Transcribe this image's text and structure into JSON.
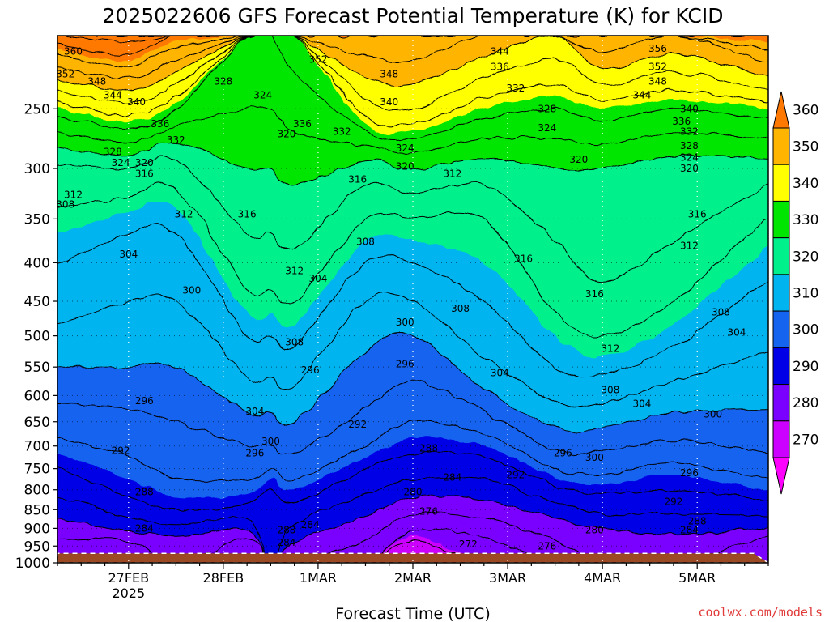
{
  "chart_data": {
    "type": "heatmap",
    "title": "2025022606 GFS Forecast Potential Temperature (K) for KCID",
    "xlabel": "Forecast Time (UTC)",
    "ylabel": "",
    "credit": "coolwx.com/models",
    "y_axis": {
      "units": "hPa",
      "scale": "log",
      "reversed": true,
      "range": [
        200,
        1000
      ],
      "ticks": [
        250,
        300,
        350,
        400,
        450,
        500,
        550,
        600,
        650,
        700,
        750,
        800,
        850,
        900,
        950,
        1000
      ]
    },
    "x_axis": {
      "range": [
        "2025-02-26 06:00",
        "2025-03-05 18:00"
      ],
      "ticks": [
        {
          "t": "2025-02-27 00:00",
          "label": "27FEB",
          "sublabel": "2025"
        },
        {
          "t": "2025-02-28 00:00",
          "label": "28FEB",
          "sublabel": ""
        },
        {
          "t": "2025-03-01 00:00",
          "label": "1MAR",
          "sublabel": ""
        },
        {
          "t": "2025-03-02 00:00",
          "label": "2MAR",
          "sublabel": ""
        },
        {
          "t": "2025-03-03 00:00",
          "label": "3MAR",
          "sublabel": ""
        },
        {
          "t": "2025-03-04 00:00",
          "label": "4MAR",
          "sublabel": ""
        },
        {
          "t": "2025-03-05 00:00",
          "label": "5MAR",
          "sublabel": ""
        }
      ]
    },
    "grid": true,
    "legend": "right",
    "colorbar": {
      "levels": [
        260,
        270,
        280,
        290,
        300,
        310,
        320,
        330,
        340,
        350,
        360,
        370
      ],
      "labels": [
        270,
        280,
        290,
        300,
        310,
        320,
        330,
        340,
        350,
        360
      ],
      "colors": [
        "#ff00ff",
        "#cc00ff",
        "#7a00ff",
        "#0000e6",
        "#1464f0",
        "#00b4f0",
        "#00f08c",
        "#00e600",
        "#ffff00",
        "#ffb400",
        "#ff7800"
      ]
    },
    "isopleths": {
      "units": "K",
      "interval": 4,
      "upper_levels_hPa": [
        950,
        900,
        850,
        800,
        750,
        700,
        650,
        600,
        550,
        500,
        450,
        400,
        350,
        300,
        250,
        200
      ],
      "times": [
        "2025-02-26 06:00",
        "2025-02-27 00:00",
        "2025-02-27 12:00",
        "2025-02-28 06:00",
        "2025-02-28 12:00",
        "2025-02-28 18:00",
        "2025-03-01 12:00",
        "2025-03-02 00:00",
        "2025-03-02 18:00",
        "2025-03-03 12:00",
        "2025-03-04 00:00",
        "2025-03-04 18:00",
        "2025-03-05 18:00"
      ],
      "theta_K": [
        [
          275,
          278,
          282,
          285,
          288,
          291,
          294,
          297,
          300,
          303,
          306,
          308,
          311,
          315,
          330,
          355
        ],
        [
          274,
          281,
          286,
          289,
          291,
          293,
          295,
          297,
          300,
          302,
          304,
          306,
          309,
          316,
          334,
          358
        ],
        [
          276,
          283,
          288,
          291,
          293,
          295,
          296,
          298,
          300,
          302,
          304,
          306,
          309,
          314,
          328,
          352
        ],
        [
          272,
          281,
          287,
          291,
          293,
          296,
          299,
          302,
          305,
          308,
          311,
          314,
          317,
          320,
          324,
          328
        ],
        [
          284,
          286,
          287,
          288,
          292,
          296,
          299,
          302,
          305,
          308,
          311,
          314,
          317,
          320,
          324,
          328
        ],
        [
          279,
          283,
          287,
          290,
          294,
          297,
          300,
          303,
          306,
          309,
          312,
          315,
          318,
          321,
          326,
          330
        ],
        [
          275,
          278,
          281,
          285,
          288,
          292,
          295,
          297,
          299,
          301,
          304,
          308,
          312,
          318,
          334,
          348
        ],
        [
          266,
          273,
          277,
          282,
          286,
          289,
          292,
          295,
          297,
          300,
          304,
          308,
          312,
          320,
          336,
          348
        ],
        [
          270,
          274,
          278,
          282,
          286,
          290,
          294,
          299,
          303,
          306,
          308,
          310,
          312,
          318,
          330,
          344
        ],
        [
          275,
          278,
          282,
          287,
          292,
          297,
          301,
          305,
          308,
          310,
          313,
          315,
          317,
          320,
          328,
          340
        ],
        [
          276,
          280,
          285,
          289,
          293,
          297,
          301,
          305,
          309,
          312,
          315,
          317,
          318,
          320,
          330,
          348
        ],
        [
          278,
          281,
          285,
          288,
          291,
          295,
          299,
          302,
          306,
          309,
          312,
          315,
          317,
          318,
          328,
          344
        ],
        [
          272,
          280,
          286,
          290,
          294,
          297,
          299,
          301,
          303,
          305,
          307,
          309,
          312,
          318,
          330,
          352
        ]
      ],
      "contour_labels": [
        {
          "v": "360",
          "t": "2025-02-26 10:00",
          "p": 210
        },
        {
          "v": "352",
          "t": "2025-02-26 08:00",
          "p": 225
        },
        {
          "v": "348",
          "t": "2025-02-26 16:00",
          "p": 230
        },
        {
          "v": "344",
          "t": "2025-02-26 20:00",
          "p": 240
        },
        {
          "v": "340",
          "t": "2025-02-27 02:00",
          "p": 245
        },
        {
          "v": "336",
          "t": "2025-02-27 08:00",
          "p": 262
        },
        {
          "v": "332",
          "t": "2025-02-27 12:00",
          "p": 275
        },
        {
          "v": "328",
          "t": "2025-02-26 20:00",
          "p": 285
        },
        {
          "v": "324",
          "t": "2025-02-26 22:00",
          "p": 295
        },
        {
          "v": "320",
          "t": "2025-02-27 04:00",
          "p": 295
        },
        {
          "v": "316",
          "t": "2025-02-27 04:00",
          "p": 305
        },
        {
          "v": "312",
          "t": "2025-02-26 10:00",
          "p": 325
        },
        {
          "v": "308",
          "t": "2025-02-26 08:00",
          "p": 335
        },
        {
          "v": "304",
          "t": "2025-02-27 00:00",
          "p": 390
        },
        {
          "v": "300",
          "t": "2025-02-27 16:00",
          "p": 435
        },
        {
          "v": "296",
          "t": "2025-02-27 04:00",
          "p": 610
        },
        {
          "v": "292",
          "t": "2025-02-26 22:00",
          "p": 710
        },
        {
          "v": "288",
          "t": "2025-02-27 04:00",
          "p": 805
        },
        {
          "v": "284",
          "t": "2025-02-27 04:00",
          "p": 900
        },
        {
          "v": "328",
          "t": "2025-02-28 00:00",
          "p": 230
        },
        {
          "v": "324",
          "t": "2025-02-28 10:00",
          "p": 240
        },
        {
          "v": "320",
          "t": "2025-02-28 16:00",
          "p": 270
        },
        {
          "v": "316",
          "t": "2025-02-28 06:00",
          "p": 345
        },
        {
          "v": "312",
          "t": "2025-02-27 14:00",
          "p": 345
        },
        {
          "v": "312",
          "t": "2025-02-28 18:00",
          "p": 410
        },
        {
          "v": "308",
          "t": "2025-02-28 18:00",
          "p": 510
        },
        {
          "v": "304",
          "t": "2025-02-28 08:00",
          "p": 630
        },
        {
          "v": "300",
          "t": "2025-02-28 12:00",
          "p": 690
        },
        {
          "v": "296",
          "t": "2025-02-28 08:00",
          "p": 715
        },
        {
          "v": "288",
          "t": "2025-02-28 16:00",
          "p": 905
        },
        {
          "v": "284",
          "t": "2025-02-28 16:00",
          "p": 940
        },
        {
          "v": "296",
          "t": "2025-02-28 22:00",
          "p": 555
        },
        {
          "v": "284",
          "t": "2025-02-28 22:00",
          "p": 890
        },
        {
          "v": "336",
          "t": "2025-02-28 20:00",
          "p": 262
        },
        {
          "v": "352",
          "t": "2025-03-01 00:00",
          "p": 215
        },
        {
          "v": "348",
          "t": "2025-03-01 18:00",
          "p": 225
        },
        {
          "v": "340",
          "t": "2025-03-01 18:00",
          "p": 245
        },
        {
          "v": "332",
          "t": "2025-03-01 06:00",
          "p": 268
        },
        {
          "v": "304",
          "t": "2025-03-01 00:00",
          "p": 420
        },
        {
          "v": "308",
          "t": "2025-03-01 12:00",
          "p": 375
        },
        {
          "v": "300",
          "t": "2025-03-01 22:00",
          "p": 480
        },
        {
          "v": "296",
          "t": "2025-03-01 22:00",
          "p": 545
        },
        {
          "v": "292",
          "t": "2025-03-01 10:00",
          "p": 655
        },
        {
          "v": "288",
          "t": "2025-03-02 04:00",
          "p": 705
        },
        {
          "v": "284",
          "t": "2025-03-02 10:00",
          "p": 770
        },
        {
          "v": "280",
          "t": "2025-03-02 00:00",
          "p": 805
        },
        {
          "v": "276",
          "t": "2025-03-02 04:00",
          "p": 855
        },
        {
          "v": "272",
          "t": "2025-03-02 14:00",
          "p": 945
        },
        {
          "v": "324",
          "t": "2025-03-01 22:00",
          "p": 282
        },
        {
          "v": "320",
          "t": "2025-03-01 22:00",
          "p": 298
        },
        {
          "v": "316",
          "t": "2025-03-01 10:00",
          "p": 310
        },
        {
          "v": "312",
          "t": "2025-03-02 10:00",
          "p": 305
        },
        {
          "v": "308",
          "t": "2025-03-02 12:00",
          "p": 460
        },
        {
          "v": "304",
          "t": "2025-03-02 22:00",
          "p": 560
        },
        {
          "v": "344",
          "t": "2025-03-02 22:00",
          "p": 210
        },
        {
          "v": "336",
          "t": "2025-03-02 22:00",
          "p": 220
        },
        {
          "v": "332",
          "t": "2025-03-03 02:00",
          "p": 235
        },
        {
          "v": "328",
          "t": "2025-03-03 10:00",
          "p": 250
        },
        {
          "v": "324",
          "t": "2025-03-03 10:00",
          "p": 265
        },
        {
          "v": "320",
          "t": "2025-03-03 18:00",
          "p": 292
        },
        {
          "v": "316",
          "t": "2025-03-03 04:00",
          "p": 395
        },
        {
          "v": "316",
          "t": "2025-03-03 22:00",
          "p": 440
        },
        {
          "v": "312",
          "t": "2025-03-04 02:00",
          "p": 520
        },
        {
          "v": "308",
          "t": "2025-03-04 02:00",
          "p": 590
        },
        {
          "v": "304",
          "t": "2025-03-04 10:00",
          "p": 615
        },
        {
          "v": "300",
          "t": "2025-03-03 22:00",
          "p": 725
        },
        {
          "v": "296",
          "t": "2025-03-03 14:00",
          "p": 715
        },
        {
          "v": "292",
          "t": "2025-03-03 02:00",
          "p": 765
        },
        {
          "v": "280",
          "t": "2025-03-03 22:00",
          "p": 905
        },
        {
          "v": "276",
          "t": "2025-03-03 10:00",
          "p": 950
        },
        {
          "v": "356",
          "t": "2025-03-04 14:00",
          "p": 208
        },
        {
          "v": "352",
          "t": "2025-03-04 14:00",
          "p": 220
        },
        {
          "v": "348",
          "t": "2025-03-04 14:00",
          "p": 230
        },
        {
          "v": "344",
          "t": "2025-03-04 10:00",
          "p": 240
        },
        {
          "v": "340",
          "t": "2025-03-04 22:00",
          "p": 250
        },
        {
          "v": "336",
          "t": "2025-03-04 20:00",
          "p": 260
        },
        {
          "v": "332",
          "t": "2025-03-04 22:00",
          "p": 268
        },
        {
          "v": "328",
          "t": "2025-03-04 22:00",
          "p": 280
        },
        {
          "v": "324",
          "t": "2025-03-04 22:00",
          "p": 290
        },
        {
          "v": "320",
          "t": "2025-03-04 22:00",
          "p": 300
        },
        {
          "v": "316",
          "t": "2025-03-05 00:00",
          "p": 345
        },
        {
          "v": "312",
          "t": "2025-03-04 22:00",
          "p": 380
        },
        {
          "v": "308",
          "t": "2025-03-05 06:00",
          "p": 465
        },
        {
          "v": "304",
          "t": "2025-03-05 10:00",
          "p": 495
        },
        {
          "v": "300",
          "t": "2025-03-05 04:00",
          "p": 635
        },
        {
          "v": "296",
          "t": "2025-03-04 22:00",
          "p": 760
        },
        {
          "v": "292",
          "t": "2025-03-04 18:00",
          "p": 830
        },
        {
          "v": "288",
          "t": "2025-03-05 00:00",
          "p": 880
        },
        {
          "v": "284",
          "t": "2025-03-04 22:00",
          "p": 905
        }
      ]
    }
  }
}
